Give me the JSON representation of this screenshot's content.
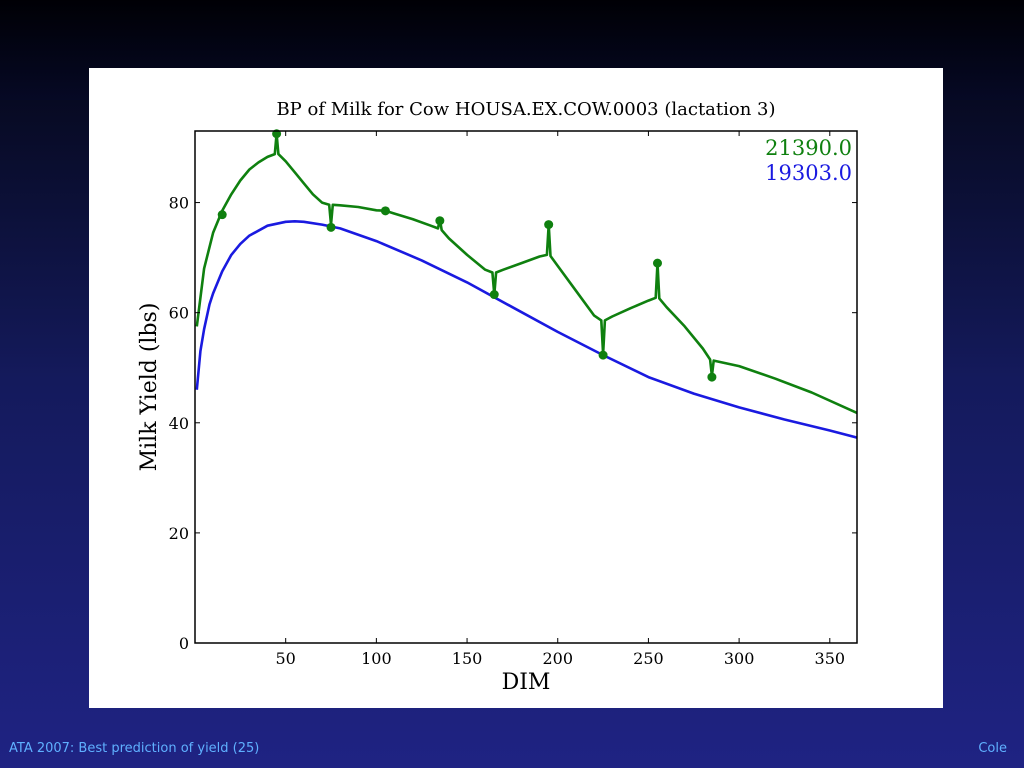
{
  "footer": {
    "left": "ATA 2007: Best prediction of yield (25)",
    "right": "Cole"
  },
  "colors": {
    "background_top": "#02030c",
    "background_bottom": "#1f2383",
    "footer_text": "#5fb0ff",
    "series_actual": "#0f800f",
    "series_standard": "#1a1ae0"
  },
  "chart_data": {
    "type": "line",
    "title": "BP of Milk for Cow HOUSA.EX.COW.0003 (lactation 3)",
    "xlabel": "DIM",
    "ylabel": "Milk Yield (lbs)",
    "xlim": [
      0,
      365
    ],
    "ylim": [
      0,
      93
    ],
    "xticks": [
      50,
      100,
      150,
      200,
      250,
      300,
      350
    ],
    "yticks": [
      0,
      20,
      40,
      60,
      80
    ],
    "grid": false,
    "legend_placement": "top-right",
    "series": [
      {
        "name": "21390.0",
        "color": "#0f800f",
        "x": [
          1,
          5,
          10,
          15,
          20,
          25,
          30,
          35,
          40,
          44,
          45,
          46,
          50,
          55,
          60,
          65,
          70,
          74,
          75,
          76,
          80,
          90,
          100,
          105,
          110,
          120,
          130,
          134,
          135,
          136,
          140,
          150,
          160,
          164,
          165,
          166,
          170,
          180,
          190,
          194,
          195,
          196,
          200,
          210,
          220,
          224,
          225,
          226,
          230,
          240,
          250,
          254,
          255,
          256,
          260,
          270,
          280,
          284,
          285,
          286,
          300,
          320,
          340,
          365
        ],
        "y": [
          57.5,
          68.0,
          74.5,
          78.5,
          81.5,
          84.0,
          86.0,
          87.3,
          88.3,
          88.8,
          92.5,
          88.8,
          87.5,
          85.5,
          83.5,
          81.5,
          80.0,
          79.6,
          76.0,
          79.6,
          79.5,
          79.2,
          78.6,
          78.5,
          78.0,
          77.0,
          75.8,
          75.3,
          77.0,
          75.0,
          73.5,
          70.5,
          67.8,
          67.3,
          63.3,
          67.3,
          67.8,
          69.0,
          70.2,
          70.5,
          76.0,
          70.3,
          68.5,
          64.0,
          59.5,
          58.6,
          52.5,
          58.6,
          59.3,
          60.8,
          62.2,
          62.7,
          69.0,
          62.6,
          61.0,
          57.5,
          53.5,
          51.5,
          48.5,
          51.3,
          50.3,
          48.0,
          45.5,
          41.8
        ],
        "points": {
          "x": [
            15,
            45,
            75,
            105,
            135,
            165,
            195,
            225,
            255,
            285
          ],
          "y": [
            77.8,
            92.5,
            75.5,
            78.5,
            76.7,
            63.3,
            76.0,
            52.3,
            69.0,
            48.3
          ]
        }
      },
      {
        "name": "19303.0",
        "color": "#1a1ae0",
        "x": [
          1,
          3,
          5,
          8,
          10,
          15,
          20,
          25,
          30,
          40,
          50,
          55,
          60,
          70,
          80,
          100,
          125,
          150,
          175,
          200,
          225,
          250,
          275,
          300,
          325,
          350,
          365
        ],
        "y": [
          46.0,
          53.0,
          57.0,
          61.5,
          63.5,
          67.5,
          70.5,
          72.5,
          74.0,
          75.8,
          76.5,
          76.6,
          76.5,
          76.0,
          75.3,
          73.0,
          69.5,
          65.5,
          61.0,
          56.5,
          52.3,
          48.3,
          45.3,
          42.8,
          40.6,
          38.6,
          37.3
        ]
      }
    ]
  }
}
